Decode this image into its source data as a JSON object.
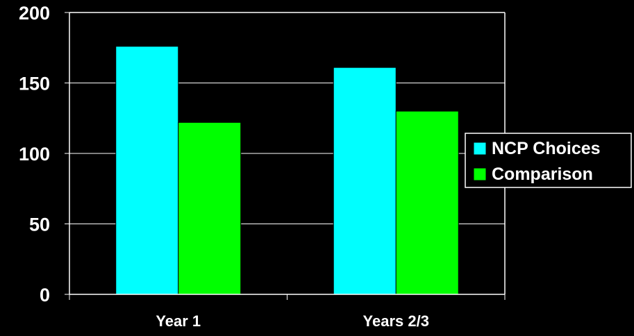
{
  "chart_data": {
    "type": "bar",
    "categories": [
      "Year 1",
      "Years 2/3"
    ],
    "series": [
      {
        "name": "NCP Choices",
        "values": [
          176,
          161
        ],
        "color": "#00FFFF"
      },
      {
        "name": "Comparison",
        "values": [
          122,
          130
        ],
        "color": "#00FF00"
      }
    ],
    "yticks": [
      0,
      50,
      100,
      150,
      200
    ],
    "ylim": [
      0,
      200
    ],
    "grid": true,
    "legend_position": "right",
    "background": "#000000",
    "axis_color": "#FFFFFF"
  }
}
